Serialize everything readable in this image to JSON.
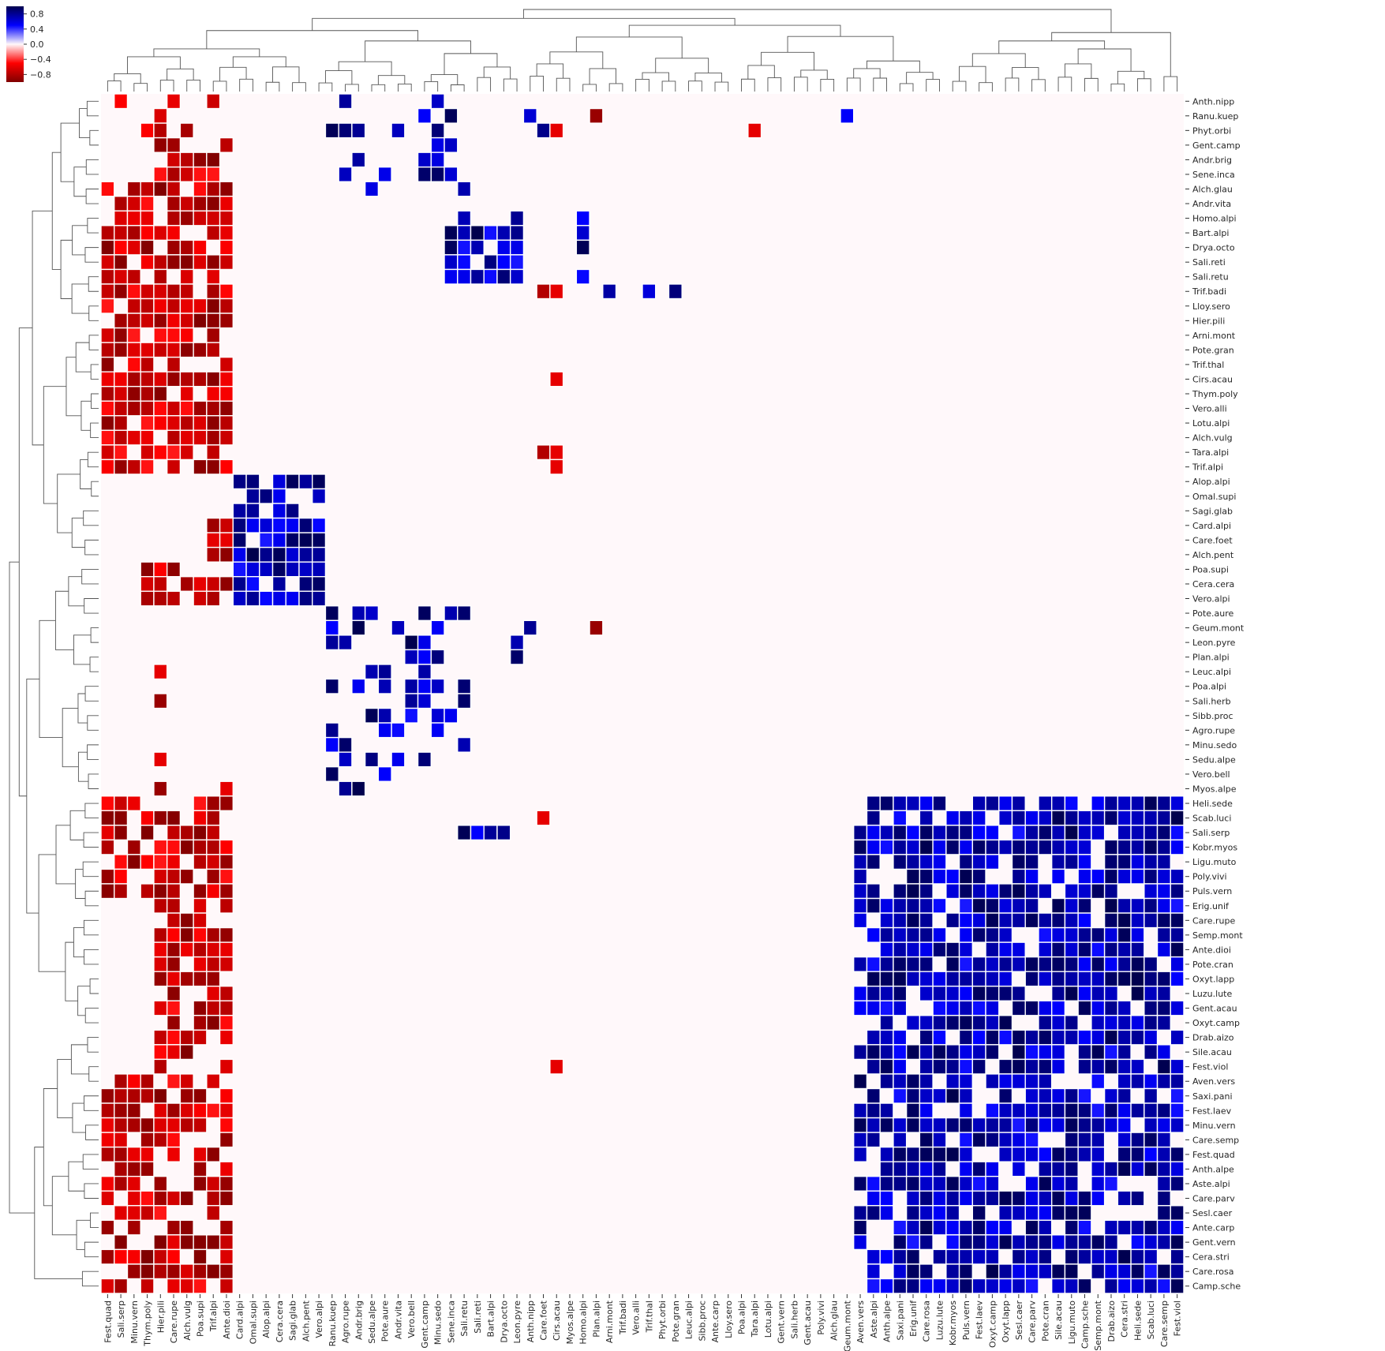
{
  "chart_data": {
    "type": "heatmap",
    "title": "",
    "colormap": {
      "name": "seismic_r",
      "stops": [
        {
          "value": -1.0,
          "color": "#800000"
        },
        {
          "value": -0.5,
          "color": "#ff0000"
        },
        {
          "value": 0.0,
          "color": "#fff8fa"
        },
        {
          "value": 0.5,
          "color": "#0000ff"
        },
        {
          "value": 1.0,
          "color": "#00004d"
        }
      ],
      "vmin": -1.0,
      "vmax": 1.0
    },
    "colorbar": {
      "ticks": [
        0.8,
        0.4,
        0.0,
        -0.4,
        -0.8
      ],
      "tick_labels": [
        "0.8",
        "0.4",
        "0.0",
        "−0.4",
        "−0.8"
      ]
    },
    "columns": [
      "Fest.quad",
      "Sali.serp",
      "Minu.vern",
      "Thym.poly",
      "Hier.pili",
      "Care.rupe",
      "Alch.vulg",
      "Poa.supi",
      "Trif.alpi",
      "Ante.dioi",
      "Card.alpi",
      "Omal.supi",
      "Alop.alpi",
      "Cera.cera",
      "Sagi.glab",
      "Alch.pent",
      "Vero.alpi",
      "Ranu.kuep",
      "Agro.rupe",
      "Andr.brig",
      "Sedu.alpe",
      "Pote.aure",
      "Andr.vita",
      "Vero.bell",
      "Gent.camp",
      "Minu.sedo",
      "Sene.inca",
      "Sali.retu",
      "Sali.reti",
      "Bart.alpi",
      "Drya.octo",
      "Leon.pyre",
      "Anth.nipp",
      "Care.foet",
      "Cirs.acau",
      "Myos.alpe",
      "Homo.alpi",
      "Plan.alpi",
      "Arni.mont",
      "Trif.badi",
      "Vero.alli",
      "Trif.thal",
      "Phyt.orbi",
      "Pote.gran",
      "Leuc.alpi",
      "Sibb.proc",
      "Ante.carp",
      "Lloy.sero",
      "Poa.alpi",
      "Tara.alpi",
      "Lotu.alpi",
      "Gent.vern",
      "Sali.herb",
      "Gent.acau",
      "Poly.vivi",
      "Alch.glau",
      "Geum.mont",
      "Aven.vers",
      "Aste.alpi",
      "Anth.alpe",
      "Saxi.pani",
      "Erig.unif",
      "Care.rosa",
      "Luzu.lute",
      "Kobr.myos",
      "Puls.vern",
      "Fest.laev",
      "Oxyt.camp",
      "Oxyt.lapp",
      "Sesl.caer",
      "Care.parv",
      "Pote.cran",
      "Sile.acau",
      "Ligu.muto",
      "Camp.sche",
      "Semp.mont",
      "Drab.aizo",
      "Cera.stri",
      "Heli.sede",
      "Scab.luci",
      "Care.semp",
      "Fest.viol"
    ],
    "rows": [
      "Anth.nipp",
      "Ranu.kuep",
      "Phyt.orbi",
      "Gent.camp",
      "Andr.brig",
      "Sene.inca",
      "Alch.glau",
      "Andr.vita",
      "Homo.alpi",
      "Bart.alpi",
      "Drya.octo",
      "Sali.reti",
      "Sali.retu",
      "Trif.badi",
      "Lloy.sero",
      "Hier.pili",
      "Arni.mont",
      "Pote.gran",
      "Trif.thal",
      "Cirs.acau",
      "Thym.poly",
      "Vero.alli",
      "Lotu.alpi",
      "Alch.vulg",
      "Tara.alpi",
      "Trif.alpi",
      "Alop.alpi",
      "Omal.supi",
      "Sagi.glab",
      "Card.alpi",
      "Care.foet",
      "Alch.pent",
      "Poa.supi",
      "Cera.cera",
      "Vero.alpi",
      "Pote.aure",
      "Geum.mont",
      "Leon.pyre",
      "Plan.alpi",
      "Leuc.alpi",
      "Poa.alpi",
      "Sali.herb",
      "Sibb.proc",
      "Agro.rupe",
      "Minu.sedo",
      "Sedu.alpe",
      "Vero.bell",
      "Myos.alpe",
      "Heli.sede",
      "Scab.luci",
      "Sali.serp",
      "Kobr.myos",
      "Ligu.muto",
      "Poly.vivi",
      "Puls.vern",
      "Erig.unif",
      "Care.rupe",
      "Semp.mont",
      "Ante.dioi",
      "Pote.cran",
      "Oxyt.lapp",
      "Luzu.lute",
      "Gent.acau",
      "Oxyt.camp",
      "Drab.aizo",
      "Sile.acau",
      "Fest.viol",
      "Aven.vers",
      "Saxi.pani",
      "Fest.laev",
      "Minu.vern",
      "Care.semp",
      "Fest.quad",
      "Anth.alpe",
      "Aste.alpi",
      "Care.parv",
      "Sesl.caer",
      "Ante.carp",
      "Gent.vern",
      "Cera.stri",
      "Care.rosa",
      "Camp.sche"
    ],
    "grid": false,
    "dendrograms": {
      "top": true,
      "left": true
    }
  }
}
